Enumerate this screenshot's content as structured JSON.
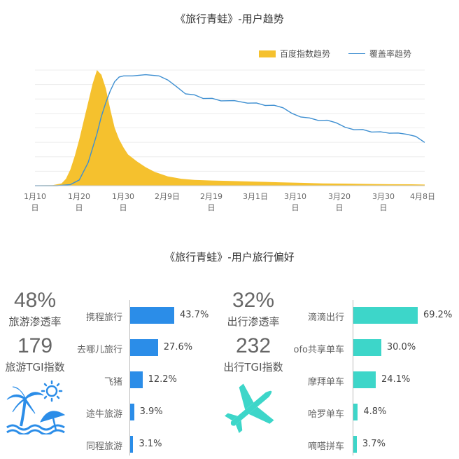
{
  "top_chart": {
    "title": "《旅行青蛙》-用户趋势",
    "legend": [
      {
        "name": "百度指数趋势",
        "color": "#f5c12e"
      },
      {
        "name": "覆盖率趋势",
        "color": "#3e8fd1"
      }
    ],
    "x_ticks": [
      {
        "line1": "1月10",
        "line2": "日"
      },
      {
        "line1": "1月20",
        "line2": "日"
      },
      {
        "line1": "1月30",
        "line2": "日"
      },
      {
        "line1": "2月9日",
        "line2": ""
      },
      {
        "line1": "2月19",
        "line2": "日"
      },
      {
        "line1": "3月1日",
        "line2": ""
      },
      {
        "line1": "3月10",
        "line2": "日"
      },
      {
        "line1": "3月20",
        "line2": "日"
      },
      {
        "line1": "3月30",
        "line2": "日"
      },
      {
        "line1": "4月8日",
        "line2": ""
      }
    ]
  },
  "chart_data": [
    {
      "type": "area",
      "title": "《旅行青蛙》-用户趋势",
      "x_label_days": "days from 1月10日",
      "series": [
        {
          "name": "百度指数趋势",
          "kind": "area",
          "color": "#f5c12e",
          "x": [
            0,
            4,
            6,
            7,
            8,
            9,
            10,
            11,
            12,
            13,
            14,
            15,
            16,
            17,
            18,
            19,
            20,
            21,
            23,
            25,
            27,
            30,
            33,
            36,
            40,
            45,
            50,
            55,
            60,
            65,
            70,
            75,
            80,
            85,
            88
          ],
          "values": [
            0.3,
            0.5,
            2,
            6,
            14,
            26,
            40,
            56,
            72,
            88,
            100,
            96,
            84,
            66,
            50,
            40,
            33,
            27,
            21,
            16,
            12,
            8,
            6,
            5,
            4.5,
            4,
            3.5,
            3,
            2.5,
            2,
            1.8,
            1.5,
            1.3,
            1.2,
            1
          ]
        },
        {
          "name": "覆盖率趋势",
          "kind": "line",
          "color": "#3e8fd1",
          "x": [
            0,
            5,
            8,
            10,
            12,
            14,
            15,
            16,
            17,
            18,
            19,
            20,
            22,
            25,
            28,
            30,
            32,
            34,
            36,
            38,
            40,
            42,
            45,
            48,
            50,
            52,
            54,
            56,
            58,
            60,
            62,
            64,
            66,
            68,
            70,
            72,
            74,
            76,
            78,
            80,
            82,
            84,
            86,
            88
          ],
          "values": [
            0,
            0,
            1,
            5,
            20,
            45,
            60,
            72,
            82,
            90,
            94,
            95,
            95,
            96,
            95,
            92,
            85,
            80,
            78,
            76,
            75,
            74,
            73,
            72,
            71,
            70,
            69,
            68,
            62,
            60,
            58,
            57,
            56,
            55,
            50,
            49,
            48,
            47,
            46,
            46,
            45,
            45,
            42,
            38
          ]
        }
      ],
      "x_tick_labels": [
        "1月10日",
        "1月20日",
        "1月30日",
        "2月9日",
        "2月19日",
        "3月1日",
        "3月10日",
        "3月20日",
        "3月30日",
        "4月8日"
      ],
      "ylim": [
        0,
        100
      ],
      "grid": true,
      "legend": "top-right"
    },
    {
      "type": "bar",
      "orientation": "horizontal",
      "categories": [
        "携程旅行",
        "去哪儿旅行",
        "飞猪",
        "途牛旅游",
        "同程旅游"
      ],
      "values": [
        43.7,
        27.6,
        12.2,
        3.9,
        3.1
      ],
      "unit": "%",
      "color": "#2b8de8"
    },
    {
      "type": "bar",
      "orientation": "horizontal",
      "categories": [
        "滴滴出行",
        "ofo共享单车",
        "摩拜单车",
        "哈罗单车",
        "嘀嗒拼车"
      ],
      "values": [
        69.2,
        30.0,
        24.1,
        4.8,
        3.7
      ],
      "unit": "%",
      "color": "#3dd6c9"
    }
  ],
  "bottom": {
    "title": "《旅行青蛙》-用户旅行偏好",
    "left": {
      "stat1_value": "48%",
      "stat1_label": "旅游渗透率",
      "stat2_value": "179",
      "stat2_label": "旅游TGI指数",
      "bar_color": "#2b8de8",
      "icon_color": "#2b8de8",
      "items": [
        {
          "label": "携程旅行",
          "value_text": "43.7%"
        },
        {
          "label": "去哪儿旅行",
          "value_text": "27.6%"
        },
        {
          "label": "飞猪",
          "value_text": "12.2%"
        },
        {
          "label": "途牛旅游",
          "value_text": "3.9%"
        },
        {
          "label": "同程旅游",
          "value_text": "3.1%"
        }
      ]
    },
    "right": {
      "stat1_value": "32%",
      "stat1_label": "出行渗透率",
      "stat2_value": "232",
      "stat2_label": "出行TGI指数",
      "bar_color": "#3dd6c9",
      "icon_color": "#3dd6c9",
      "items": [
        {
          "label": "滴滴出行",
          "value_text": "69.2%"
        },
        {
          "label": "ofo共享单车",
          "value_text": "30.0%"
        },
        {
          "label": "摩拜单车",
          "value_text": "24.1%"
        },
        {
          "label": "哈罗单车",
          "value_text": "4.8%"
        },
        {
          "label": "嘀嗒拼车",
          "value_text": "3.7%"
        }
      ]
    }
  }
}
